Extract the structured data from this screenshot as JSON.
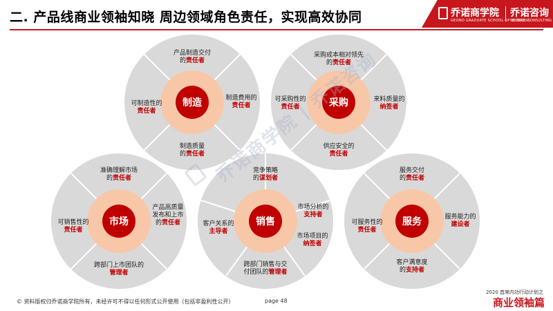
{
  "header": {
    "title": "二. 产品线商业领袖知晓 周边领域角色责任，实现高效协同",
    "brand_name_1": "乔诺商学院",
    "brand_sub_1": "GEONO GRADUATE SCHOOL OF BUSINESS",
    "brand_name_2": "乔诺咨询",
    "brand_sub_2": "GEONOL CONSULTING"
  },
  "colors": {
    "accent": "#c8161d",
    "outer_circle": "#d9d9d9",
    "inner_ring": "#f8c7a8",
    "center": "#c00000",
    "highlight_text": "#c00000"
  },
  "watermark": {
    "text": "乔诺商学院 | 乔诺咨询"
  },
  "circles": [
    {
      "id": "manufacturing",
      "center_label": "制造",
      "segments": [
        {
          "line1": "产品制造交付",
          "line2": "的",
          "role": "责任者"
        },
        {
          "line1": "制造费用的",
          "line2": "",
          "role": "责任者"
        },
        {
          "line1": "制造质量",
          "line2": "的",
          "role": "责任者"
        },
        {
          "line1": "可制造性的",
          "line2": "",
          "role": "责任者"
        }
      ]
    },
    {
      "id": "procurement",
      "center_label": "采购",
      "segments": [
        {
          "line1": "采购成本相对领先",
          "line2": "的",
          "role": "责任者"
        },
        {
          "line1": "来料质量的",
          "line2": "",
          "role": "纳签者"
        },
        {
          "line1": "供应安全的",
          "line2": "",
          "role": "责任者"
        },
        {
          "line1": "可采购性的",
          "line2": "",
          "role": "责任者"
        }
      ]
    },
    {
      "id": "market",
      "center_label": "市场",
      "segments": [
        {
          "line1": "准确理解市场",
          "line2": "的",
          "role": "责任者"
        },
        {
          "line1": "产品高质量",
          "line2": "发布和上市",
          "line3": "的",
          "role": "责任者"
        },
        {
          "line1": "跨部门上市团队的",
          "line2": "",
          "role": "管理者"
        },
        {
          "line1": "可销售性的",
          "line2": "",
          "role": "责任者"
        }
      ]
    },
    {
      "id": "sales",
      "center_label": "销售",
      "segments": [
        {
          "line1": "竞争策略",
          "line2": "的",
          "role": "谋划者"
        },
        {
          "line1": "市场分析的",
          "line2": "",
          "role": "支持者"
        },
        {
          "line1": "市场项目的",
          "line2": "",
          "role": "纳签者"
        },
        {
          "line1": "跨部门销售与交",
          "line2": "付团队的",
          "role": "管理者"
        },
        {
          "line1": "客户关系的",
          "line2": "",
          "role": "主导者"
        }
      ]
    },
    {
      "id": "service",
      "center_label": "服务",
      "segments": [
        {
          "line1": "服务交付",
          "line2": "的",
          "role": "责任者"
        },
        {
          "line1": "服务能力的",
          "line2": "",
          "role": "建设者"
        },
        {
          "line1": "客户满意度",
          "line2": "的",
          "role": "支持者"
        },
        {
          "line1": "可服务性的",
          "line2": "",
          "role": "责任者"
        }
      ]
    }
  ],
  "footer": {
    "copyright": "© 资料版权归乔诺商学院所有，未经许可不得以任何形式公开使用（包括非盈利性公开）",
    "page": "page 48",
    "tag_small": "2020 首席内功行动计划之",
    "tag_big": "商业领袖篇"
  }
}
